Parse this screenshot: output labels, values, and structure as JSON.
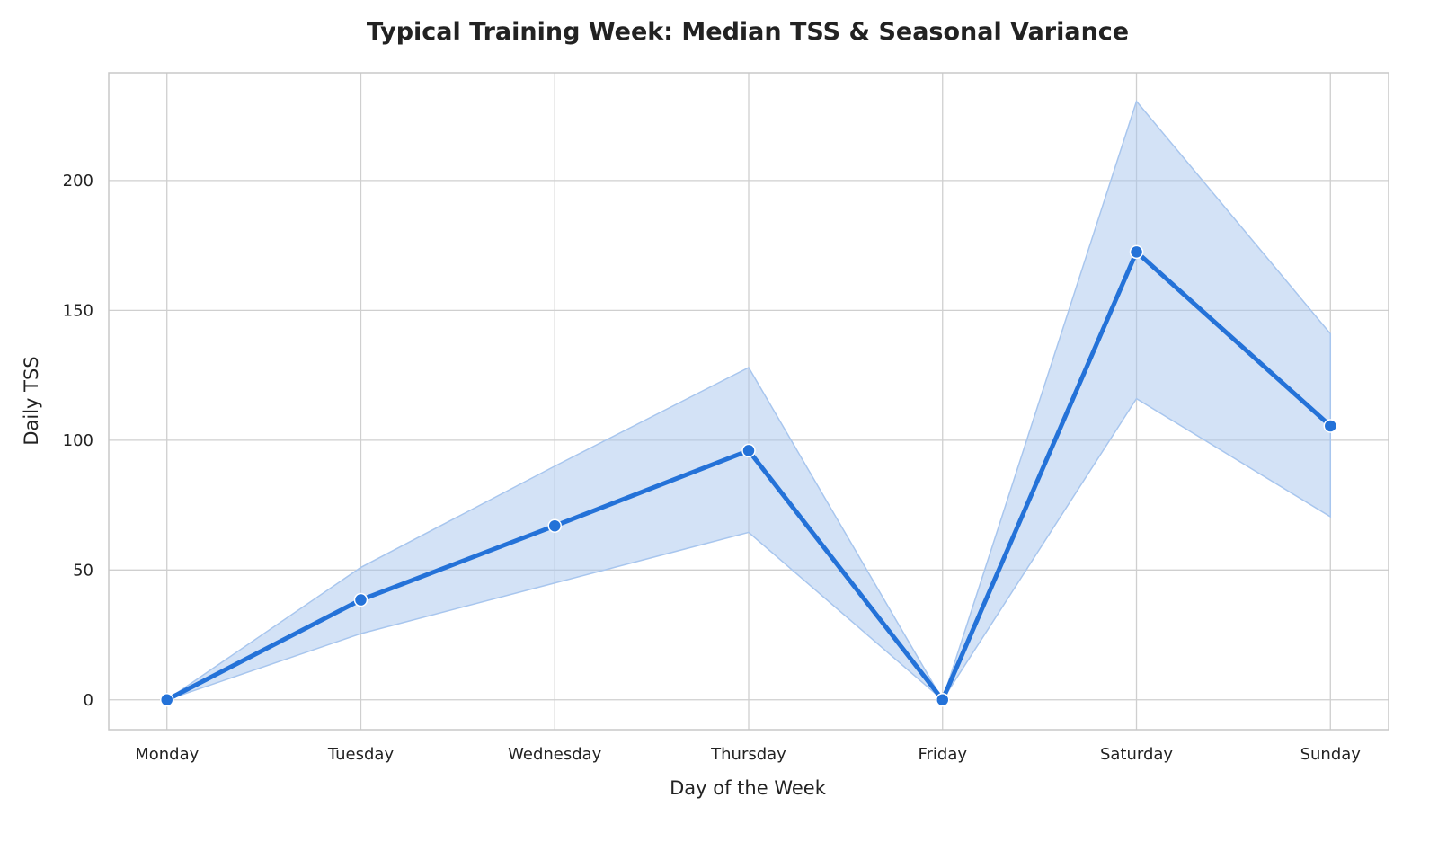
{
  "chart_data": {
    "type": "line",
    "title": "Typical Training Week: Median TSS & Seasonal Variance",
    "xlabel": "Day of the Week",
    "ylabel": "Daily TSS",
    "categories": [
      "Monday",
      "Tuesday",
      "Wednesday",
      "Thursday",
      "Friday",
      "Saturday",
      "Sunday"
    ],
    "series": [
      {
        "values": [
          0,
          38.5,
          67,
          96,
          0,
          172.5,
          105.5
        ],
        "band_lower": [
          0,
          25.5,
          45,
          64.5,
          0,
          116,
          70.5
        ],
        "band_upper": [
          0,
          51,
          90,
          128,
          0,
          230.5,
          141
        ],
        "color": "#2472d8",
        "band_color": "#a8c6ee"
      }
    ],
    "yticks": [
      0,
      50,
      100,
      150,
      200
    ],
    "ylim": [
      -11.5,
      241.5
    ],
    "grid": true
  }
}
